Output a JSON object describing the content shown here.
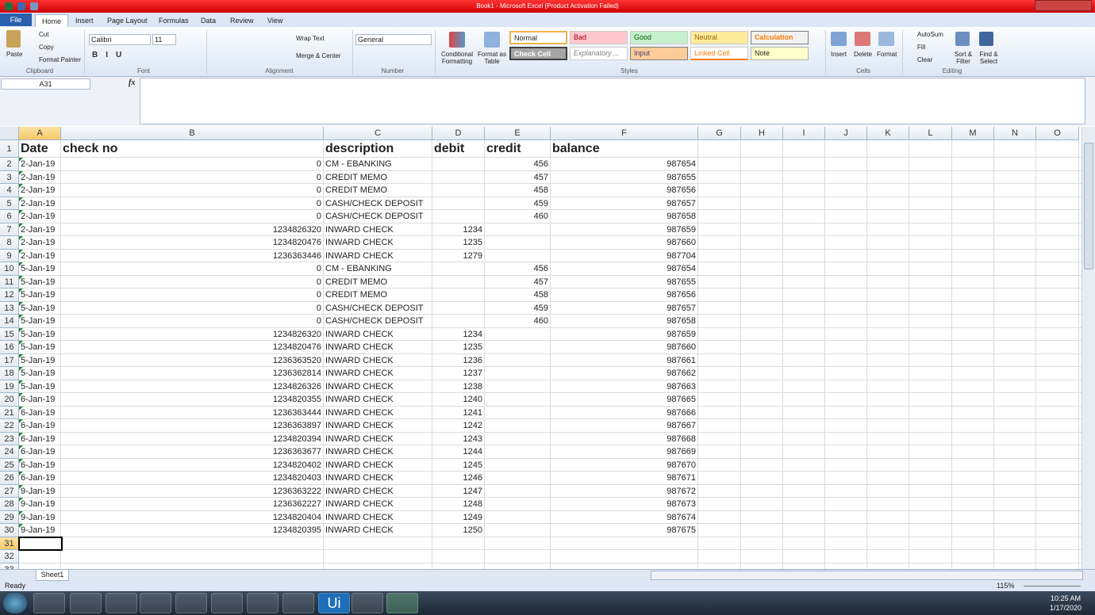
{
  "window": {
    "title": "Book1 - Microsoft Excel (Product Activation Failed)"
  },
  "tabs": [
    "File",
    "Home",
    "Insert",
    "Page Layout",
    "Formulas",
    "Data",
    "Review",
    "View"
  ],
  "ribbon": {
    "clipboard": {
      "label": "Clipboard",
      "paste": "Paste",
      "cut": "Cut",
      "copy": "Copy",
      "format_painter": "Format Painter"
    },
    "font": {
      "label": "Font",
      "name": "Calibri",
      "size": "11"
    },
    "alignment": {
      "label": "Alignment",
      "wrap_text": "Wrap Text",
      "merge_center": "Merge & Center"
    },
    "number": {
      "label": "Number",
      "format": "General"
    },
    "styles": {
      "label": "Styles",
      "conditional_formatting": "Conditional Formatting",
      "format_as_table": "Format as Table",
      "cells": [
        "Normal",
        "Bad",
        "Good",
        "Neutral",
        "Calculation",
        "Check Cell",
        "Explanatory ...",
        "Input",
        "Linked Cell",
        "Note"
      ]
    },
    "cells": {
      "label": "Cells",
      "insert": "Insert",
      "delete": "Delete",
      "format": "Format"
    },
    "editing": {
      "label": "Editing",
      "autosum": "AutoSum",
      "fill": "Fill",
      "clear": "Clear",
      "sort_filter": "Sort & Filter",
      "find_select": "Find & Select"
    }
  },
  "formula_bar": {
    "name_box": "A31",
    "fx": "fx"
  },
  "sheet": {
    "columns": [
      "A",
      "B",
      "C",
      "D",
      "E",
      "F",
      "G",
      "H",
      "I",
      "J",
      "K",
      "L",
      "M",
      "N",
      "O"
    ],
    "row_numbers": [
      1,
      2,
      3,
      4,
      5,
      6,
      7,
      8,
      9,
      10,
      11,
      12,
      13,
      14,
      15,
      16,
      17,
      18,
      19,
      20,
      21,
      22,
      23,
      24,
      25,
      26,
      27,
      28,
      29,
      30,
      31,
      32,
      33
    ],
    "header": [
      "Date",
      "check no",
      "description",
      "debit",
      "credit",
      "balance"
    ],
    "rows": [
      [
        "2-Jan-19",
        0,
        "CM - EBANKING",
        null,
        456,
        987654
      ],
      [
        "2-Jan-19",
        0,
        "CREDIT MEMO",
        null,
        457,
        987655
      ],
      [
        "2-Jan-19",
        0,
        "CREDIT MEMO",
        null,
        458,
        987656
      ],
      [
        "2-Jan-19",
        0,
        "CASH/CHECK DEPOSIT",
        null,
        459,
        987657
      ],
      [
        "2-Jan-19",
        0,
        "CASH/CHECK DEPOSIT",
        null,
        460,
        987658
      ],
      [
        "2-Jan-19",
        1234826320,
        "INWARD CHECK",
        1234,
        null,
        987659
      ],
      [
        "2-Jan-19",
        1234820476,
        "INWARD CHECK",
        1235,
        null,
        987660
      ],
      [
        "2-Jan-19",
        1236363446,
        "INWARD CHECK",
        1279,
        null,
        987704
      ],
      [
        "5-Jan-19",
        0,
        "CM - EBANKING",
        null,
        456,
        987654
      ],
      [
        "5-Jan-19",
        0,
        "CREDIT MEMO",
        null,
        457,
        987655
      ],
      [
        "5-Jan-19",
        0,
        "CREDIT MEMO",
        null,
        458,
        987656
      ],
      [
        "5-Jan-19",
        0,
        "CASH/CHECK DEPOSIT",
        null,
        459,
        987657
      ],
      [
        "5-Jan-19",
        0,
        "CASH/CHECK DEPOSIT",
        null,
        460,
        987658
      ],
      [
        "5-Jan-19",
        1234826320,
        "INWARD CHECK",
        1234,
        null,
        987659
      ],
      [
        "5-Jan-19",
        1234820476,
        "INWARD CHECK",
        1235,
        null,
        987660
      ],
      [
        "5-Jan-19",
        1236363520,
        "INWARD CHECK",
        1236,
        null,
        987661
      ],
      [
        "5-Jan-19",
        1236362814,
        "INWARD CHECK",
        1237,
        null,
        987662
      ],
      [
        "5-Jan-19",
        1234826326,
        "INWARD CHECK",
        1238,
        null,
        987663
      ],
      [
        "6-Jan-19",
        1234820355,
        "INWARD CHECK",
        1240,
        null,
        987665
      ],
      [
        "6-Jan-19",
        1236363444,
        "INWARD CHECK",
        1241,
        null,
        987666
      ],
      [
        "6-Jan-19",
        1236363897,
        "INWARD CHECK",
        1242,
        null,
        987667
      ],
      [
        "6-Jan-19",
        1234820394,
        "INWARD CHECK",
        1243,
        null,
        987668
      ],
      [
        "6-Jan-19",
        1236363677,
        "INWARD CHECK",
        1244,
        null,
        987669
      ],
      [
        "6-Jan-19",
        1234820402,
        "INWARD CHECK",
        1245,
        null,
        987670
      ],
      [
        "6-Jan-19",
        1234820403,
        "INWARD CHECK",
        1246,
        null,
        987671
      ],
      [
        "9-Jan-19",
        1236363222,
        "INWARD CHECK",
        1247,
        null,
        987672
      ],
      [
        "9-Jan-19",
        1236362227,
        "INWARD CHECK",
        1248,
        null,
        987673
      ],
      [
        "9-Jan-19",
        1234820404,
        "INWARD CHECK",
        1249,
        null,
        987674
      ],
      [
        "9-Jan-19",
        1234820395,
        "INWARD CHECK",
        1250,
        null,
        987675
      ]
    ]
  },
  "sheet_tabs": [
    "Sheet1"
  ],
  "status": {
    "ready": "Ready",
    "zoom": "115%"
  },
  "taskbar": {
    "app": "Ui",
    "time": "10:25 AM",
    "date": "1/17/2020"
  }
}
